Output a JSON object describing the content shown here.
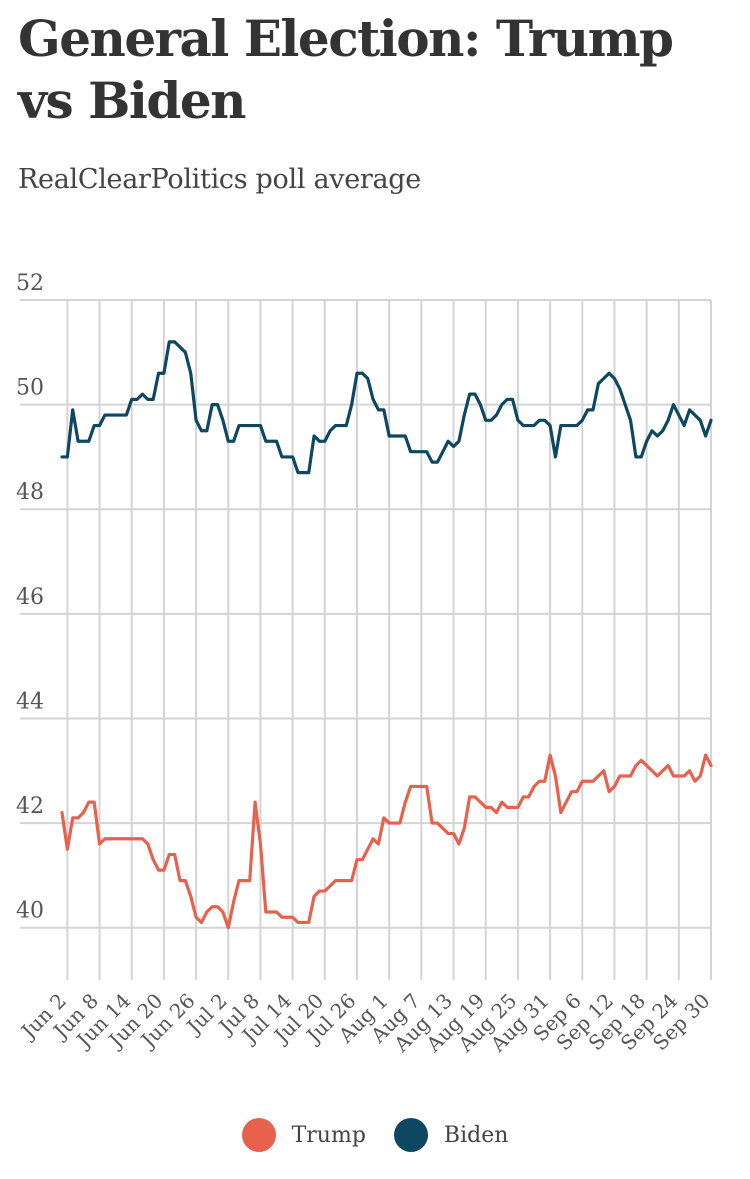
{
  "title": "General Election: Trump vs Biden",
  "subtitle": "RealClearPolitics poll average",
  "colors": {
    "trump": "#e8614d",
    "biden": "#0e4762",
    "grid": "#d4d4d4"
  },
  "chart_data": {
    "type": "line",
    "title": "General Election: Trump vs Biden",
    "subtitle": "RealClearPolitics poll average",
    "xlabel": "",
    "ylabel": "",
    "ylim": [
      39,
      52
    ],
    "yticks": [
      52,
      50,
      48,
      46,
      44,
      42,
      40
    ],
    "xlim": [
      "2020-06-01",
      "2020-09-30"
    ],
    "x_tick_labels": [
      "Jun 2",
      "Jun 8",
      "Jun 14",
      "Jun 20",
      "Jun 26",
      "Jul 2",
      "Jul 8",
      "Jul 14",
      "Jul 20",
      "Jul 26",
      "Aug 1",
      "Aug 7",
      "Aug 13",
      "Aug 19",
      "Aug 25",
      "Aug 31",
      "Sep 6",
      "Sep 12",
      "Sep 18",
      "Sep 24",
      "Sep 30"
    ],
    "x_tick_dates": [
      "2020-06-02",
      "2020-06-08",
      "2020-06-14",
      "2020-06-20",
      "2020-06-26",
      "2020-07-02",
      "2020-07-08",
      "2020-07-14",
      "2020-07-20",
      "2020-07-26",
      "2020-08-01",
      "2020-08-07",
      "2020-08-13",
      "2020-08-19",
      "2020-08-25",
      "2020-08-31",
      "2020-09-06",
      "2020-09-12",
      "2020-09-18",
      "2020-09-24",
      "2020-09-30"
    ],
    "grid": true,
    "legend_position": "bottom-center",
    "series": [
      {
        "name": "Trump",
        "color": "#e8614d",
        "points": [
          [
            "2020-06-01",
            42.2
          ],
          [
            "2020-06-02",
            41.5
          ],
          [
            "2020-06-03",
            42.1
          ],
          [
            "2020-06-04",
            42.1
          ],
          [
            "2020-06-05",
            42.2
          ],
          [
            "2020-06-06",
            42.4
          ],
          [
            "2020-06-07",
            42.4
          ],
          [
            "2020-06-08",
            41.6
          ],
          [
            "2020-06-09",
            41.7
          ],
          [
            "2020-06-10",
            41.7
          ],
          [
            "2020-06-11",
            41.7
          ],
          [
            "2020-06-12",
            41.7
          ],
          [
            "2020-06-13",
            41.7
          ],
          [
            "2020-06-14",
            41.7
          ],
          [
            "2020-06-15",
            41.7
          ],
          [
            "2020-06-16",
            41.7
          ],
          [
            "2020-06-17",
            41.6
          ],
          [
            "2020-06-18",
            41.3
          ],
          [
            "2020-06-19",
            41.1
          ],
          [
            "2020-06-20",
            41.1
          ],
          [
            "2020-06-21",
            41.4
          ],
          [
            "2020-06-22",
            41.4
          ],
          [
            "2020-06-23",
            40.9
          ],
          [
            "2020-06-24",
            40.9
          ],
          [
            "2020-06-25",
            40.6
          ],
          [
            "2020-06-26",
            40.2
          ],
          [
            "2020-06-27",
            40.1
          ],
          [
            "2020-06-28",
            40.3
          ],
          [
            "2020-06-29",
            40.4
          ],
          [
            "2020-06-30",
            40.4
          ],
          [
            "2020-07-01",
            40.3
          ],
          [
            "2020-07-02",
            40.0
          ],
          [
            "2020-07-03",
            40.5
          ],
          [
            "2020-07-04",
            40.9
          ],
          [
            "2020-07-05",
            40.9
          ],
          [
            "2020-07-06",
            40.9
          ],
          [
            "2020-07-07",
            42.4
          ],
          [
            "2020-07-08",
            41.6
          ],
          [
            "2020-07-09",
            40.3
          ],
          [
            "2020-07-10",
            40.3
          ],
          [
            "2020-07-11",
            40.3
          ],
          [
            "2020-07-12",
            40.2
          ],
          [
            "2020-07-13",
            40.2
          ],
          [
            "2020-07-14",
            40.2
          ],
          [
            "2020-07-15",
            40.1
          ],
          [
            "2020-07-16",
            40.1
          ],
          [
            "2020-07-17",
            40.1
          ],
          [
            "2020-07-18",
            40.6
          ],
          [
            "2020-07-19",
            40.7
          ],
          [
            "2020-07-20",
            40.7
          ],
          [
            "2020-07-21",
            40.8
          ],
          [
            "2020-07-22",
            40.9
          ],
          [
            "2020-07-23",
            40.9
          ],
          [
            "2020-07-24",
            40.9
          ],
          [
            "2020-07-25",
            40.9
          ],
          [
            "2020-07-26",
            41.3
          ],
          [
            "2020-07-27",
            41.3
          ],
          [
            "2020-07-28",
            41.5
          ],
          [
            "2020-07-29",
            41.7
          ],
          [
            "2020-07-30",
            41.6
          ],
          [
            "2020-07-31",
            42.1
          ],
          [
            "2020-08-01",
            42.0
          ],
          [
            "2020-08-02",
            42.0
          ],
          [
            "2020-08-03",
            42.0
          ],
          [
            "2020-08-04",
            42.4
          ],
          [
            "2020-08-05",
            42.7
          ],
          [
            "2020-08-06",
            42.7
          ],
          [
            "2020-08-07",
            42.7
          ],
          [
            "2020-08-08",
            42.7
          ],
          [
            "2020-08-09",
            42.0
          ],
          [
            "2020-08-10",
            42.0
          ],
          [
            "2020-08-11",
            41.9
          ],
          [
            "2020-08-12",
            41.8
          ],
          [
            "2020-08-13",
            41.8
          ],
          [
            "2020-08-14",
            41.6
          ],
          [
            "2020-08-15",
            41.9
          ],
          [
            "2020-08-16",
            42.5
          ],
          [
            "2020-08-17",
            42.5
          ],
          [
            "2020-08-18",
            42.4
          ],
          [
            "2020-08-19",
            42.3
          ],
          [
            "2020-08-20",
            42.3
          ],
          [
            "2020-08-21",
            42.2
          ],
          [
            "2020-08-22",
            42.4
          ],
          [
            "2020-08-23",
            42.3
          ],
          [
            "2020-08-24",
            42.3
          ],
          [
            "2020-08-25",
            42.3
          ],
          [
            "2020-08-26",
            42.5
          ],
          [
            "2020-08-27",
            42.5
          ],
          [
            "2020-08-28",
            42.7
          ],
          [
            "2020-08-29",
            42.8
          ],
          [
            "2020-08-30",
            42.8
          ],
          [
            "2020-08-31",
            43.3
          ],
          [
            "2020-09-01",
            42.9
          ],
          [
            "2020-09-02",
            42.2
          ],
          [
            "2020-09-03",
            42.4
          ],
          [
            "2020-09-04",
            42.6
          ],
          [
            "2020-09-05",
            42.6
          ],
          [
            "2020-09-06",
            42.8
          ],
          [
            "2020-09-07",
            42.8
          ],
          [
            "2020-09-08",
            42.8
          ],
          [
            "2020-09-09",
            42.9
          ],
          [
            "2020-09-10",
            43.0
          ],
          [
            "2020-09-11",
            42.6
          ],
          [
            "2020-09-12",
            42.7
          ],
          [
            "2020-09-13",
            42.9
          ],
          [
            "2020-09-14",
            42.9
          ],
          [
            "2020-09-15",
            42.9
          ],
          [
            "2020-09-16",
            43.1
          ],
          [
            "2020-09-17",
            43.2
          ],
          [
            "2020-09-18",
            43.1
          ],
          [
            "2020-09-19",
            43.0
          ],
          [
            "2020-09-20",
            42.9
          ],
          [
            "2020-09-21",
            43.0
          ],
          [
            "2020-09-22",
            43.1
          ],
          [
            "2020-09-23",
            42.9
          ],
          [
            "2020-09-24",
            42.9
          ],
          [
            "2020-09-25",
            42.9
          ],
          [
            "2020-09-26",
            43.0
          ],
          [
            "2020-09-27",
            42.8
          ],
          [
            "2020-09-28",
            42.9
          ],
          [
            "2020-09-29",
            43.3
          ],
          [
            "2020-09-30",
            43.1
          ]
        ]
      },
      {
        "name": "Biden",
        "color": "#0e4762",
        "points": [
          [
            "2020-06-01",
            49.0
          ],
          [
            "2020-06-02",
            49.0
          ],
          [
            "2020-06-03",
            49.9
          ],
          [
            "2020-06-04",
            49.3
          ],
          [
            "2020-06-05",
            49.3
          ],
          [
            "2020-06-06",
            49.3
          ],
          [
            "2020-06-07",
            49.6
          ],
          [
            "2020-06-08",
            49.6
          ],
          [
            "2020-06-09",
            49.8
          ],
          [
            "2020-06-10",
            49.8
          ],
          [
            "2020-06-11",
            49.8
          ],
          [
            "2020-06-12",
            49.8
          ],
          [
            "2020-06-13",
            49.8
          ],
          [
            "2020-06-14",
            50.1
          ],
          [
            "2020-06-15",
            50.1
          ],
          [
            "2020-06-16",
            50.2
          ],
          [
            "2020-06-17",
            50.1
          ],
          [
            "2020-06-18",
            50.1
          ],
          [
            "2020-06-19",
            50.6
          ],
          [
            "2020-06-20",
            50.6
          ],
          [
            "2020-06-21",
            51.2
          ],
          [
            "2020-06-22",
            51.2
          ],
          [
            "2020-06-23",
            51.1
          ],
          [
            "2020-06-24",
            51.0
          ],
          [
            "2020-06-25",
            50.6
          ],
          [
            "2020-06-26",
            49.7
          ],
          [
            "2020-06-27",
            49.5
          ],
          [
            "2020-06-28",
            49.5
          ],
          [
            "2020-06-29",
            50.0
          ],
          [
            "2020-06-30",
            50.0
          ],
          [
            "2020-07-01",
            49.7
          ],
          [
            "2020-07-02",
            49.3
          ],
          [
            "2020-07-03",
            49.3
          ],
          [
            "2020-07-04",
            49.6
          ],
          [
            "2020-07-05",
            49.6
          ],
          [
            "2020-07-06",
            49.6
          ],
          [
            "2020-07-07",
            49.6
          ],
          [
            "2020-07-08",
            49.6
          ],
          [
            "2020-07-09",
            49.3
          ],
          [
            "2020-07-10",
            49.3
          ],
          [
            "2020-07-11",
            49.3
          ],
          [
            "2020-07-12",
            49.0
          ],
          [
            "2020-07-13",
            49.0
          ],
          [
            "2020-07-14",
            49.0
          ],
          [
            "2020-07-15",
            48.7
          ],
          [
            "2020-07-16",
            48.7
          ],
          [
            "2020-07-17",
            48.7
          ],
          [
            "2020-07-18",
            49.4
          ],
          [
            "2020-07-19",
            49.3
          ],
          [
            "2020-07-20",
            49.3
          ],
          [
            "2020-07-21",
            49.5
          ],
          [
            "2020-07-22",
            49.6
          ],
          [
            "2020-07-23",
            49.6
          ],
          [
            "2020-07-24",
            49.6
          ],
          [
            "2020-07-25",
            50.0
          ],
          [
            "2020-07-26",
            50.6
          ],
          [
            "2020-07-27",
            50.6
          ],
          [
            "2020-07-28",
            50.5
          ],
          [
            "2020-07-29",
            50.1
          ],
          [
            "2020-07-30",
            49.9
          ],
          [
            "2020-07-31",
            49.9
          ],
          [
            "2020-08-01",
            49.4
          ],
          [
            "2020-08-02",
            49.4
          ],
          [
            "2020-08-03",
            49.4
          ],
          [
            "2020-08-04",
            49.4
          ],
          [
            "2020-08-05",
            49.1
          ],
          [
            "2020-08-06",
            49.1
          ],
          [
            "2020-08-07",
            49.1
          ],
          [
            "2020-08-08",
            49.1
          ],
          [
            "2020-08-09",
            48.9
          ],
          [
            "2020-08-10",
            48.9
          ],
          [
            "2020-08-11",
            49.1
          ],
          [
            "2020-08-12",
            49.3
          ],
          [
            "2020-08-13",
            49.2
          ],
          [
            "2020-08-14",
            49.3
          ],
          [
            "2020-08-15",
            49.8
          ],
          [
            "2020-08-16",
            50.2
          ],
          [
            "2020-08-17",
            50.2
          ],
          [
            "2020-08-18",
            50.0
          ],
          [
            "2020-08-19",
            49.7
          ],
          [
            "2020-08-20",
            49.7
          ],
          [
            "2020-08-21",
            49.8
          ],
          [
            "2020-08-22",
            50.0
          ],
          [
            "2020-08-23",
            50.1
          ],
          [
            "2020-08-24",
            50.1
          ],
          [
            "2020-08-25",
            49.7
          ],
          [
            "2020-08-26",
            49.6
          ],
          [
            "2020-08-27",
            49.6
          ],
          [
            "2020-08-28",
            49.6
          ],
          [
            "2020-08-29",
            49.7
          ],
          [
            "2020-08-30",
            49.7
          ],
          [
            "2020-08-31",
            49.6
          ],
          [
            "2020-09-01",
            49.0
          ],
          [
            "2020-09-02",
            49.6
          ],
          [
            "2020-09-03",
            49.6
          ],
          [
            "2020-09-04",
            49.6
          ],
          [
            "2020-09-05",
            49.6
          ],
          [
            "2020-09-06",
            49.7
          ],
          [
            "2020-09-07",
            49.9
          ],
          [
            "2020-09-08",
            49.9
          ],
          [
            "2020-09-09",
            50.4
          ],
          [
            "2020-09-10",
            50.5
          ],
          [
            "2020-09-11",
            50.6
          ],
          [
            "2020-09-12",
            50.5
          ],
          [
            "2020-09-13",
            50.3
          ],
          [
            "2020-09-14",
            50.0
          ],
          [
            "2020-09-15",
            49.7
          ],
          [
            "2020-09-16",
            49.0
          ],
          [
            "2020-09-17",
            49.0
          ],
          [
            "2020-09-18",
            49.3
          ],
          [
            "2020-09-19",
            49.5
          ],
          [
            "2020-09-20",
            49.4
          ],
          [
            "2020-09-21",
            49.5
          ],
          [
            "2020-09-22",
            49.7
          ],
          [
            "2020-09-23",
            50.0
          ],
          [
            "2020-09-24",
            49.8
          ],
          [
            "2020-09-25",
            49.6
          ],
          [
            "2020-09-26",
            49.9
          ],
          [
            "2020-09-27",
            49.8
          ],
          [
            "2020-09-28",
            49.7
          ],
          [
            "2020-09-29",
            49.4
          ],
          [
            "2020-09-30",
            49.7
          ]
        ]
      }
    ]
  }
}
